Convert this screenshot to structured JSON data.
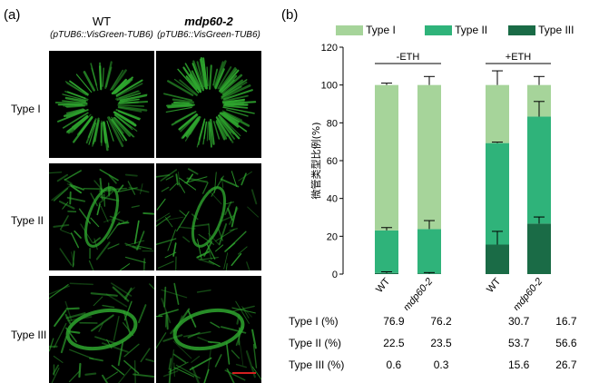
{
  "panel_a": {
    "label": "(a)",
    "columns": [
      {
        "title": "WT",
        "subtitle": "(pTUB6::VisGreen-TUB6)",
        "italic_title": false
      },
      {
        "title": "mdp60-2",
        "subtitle": "(pTUB6::VisGreen-TUB6)",
        "italic_title": true
      }
    ],
    "rows": [
      "Type I",
      "Type II",
      "Type III"
    ],
    "image_color": "#2ea52e"
  },
  "panel_b": {
    "label": "(b)",
    "legend": [
      {
        "label": "Type I",
        "color": "#a6d49a"
      },
      {
        "label": "Type II",
        "color": "#2fb37a"
      },
      {
        "label": "Type III",
        "color": "#1a6b46"
      }
    ],
    "group_labels": [
      "-ETH",
      "+ETH"
    ]
  },
  "chart_data": {
    "type": "bar",
    "stacked": true,
    "categories": [
      "WT",
      "mdp60-2",
      "WT",
      "mdp60-2"
    ],
    "groups": [
      "-ETH",
      "-ETH",
      "+ETH",
      "+ETH"
    ],
    "ylabel": "微管类型比例(%)",
    "ylim": [
      0,
      120
    ],
    "yticks": [
      0,
      20,
      40,
      60,
      80,
      100,
      120
    ],
    "series": [
      {
        "name": "Type III",
        "values": [
          0.6,
          0.3,
          15.6,
          26.7
        ],
        "errors": [
          0.6,
          0.5,
          7,
          3.5
        ]
      },
      {
        "name": "Type II",
        "values": [
          22.5,
          23.5,
          53.7,
          56.6
        ],
        "errors": [
          1.5,
          4.5,
          0.5,
          8
        ]
      },
      {
        "name": "Type I",
        "values": [
          76.9,
          76.2,
          30.7,
          16.7
        ],
        "errors": [
          1,
          4.5,
          7.5,
          4.5
        ]
      }
    ]
  },
  "table": {
    "rows": [
      {
        "label": "Type I (%)",
        "values": [
          "76.9",
          "76.2",
          "30.7",
          "16.7"
        ]
      },
      {
        "label": "Type II (%)",
        "values": [
          "22.5",
          "23.5",
          "53.7",
          "56.6"
        ]
      },
      {
        "label": "Type III (%)",
        "values": [
          "0.6",
          "0.3",
          "15.6",
          "26.7"
        ]
      }
    ]
  }
}
